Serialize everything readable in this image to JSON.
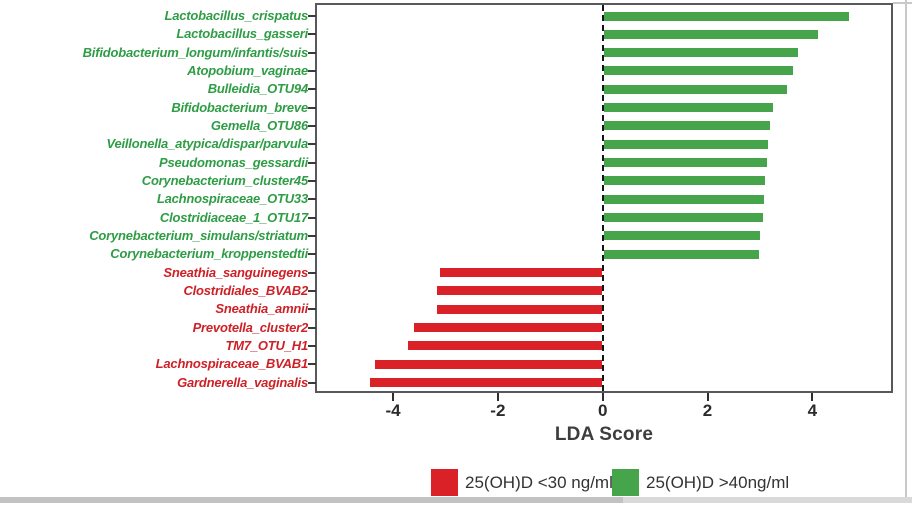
{
  "chart_data": {
    "type": "bar",
    "orientation": "horizontal",
    "xlabel": "LDA Score",
    "xlim": [
      -5.45,
      5.5
    ],
    "xticks": [
      -4,
      -2,
      0,
      2,
      4
    ],
    "grid": false,
    "zero_line_style": "dashed",
    "groups": {
      "high": {
        "name": "25(OH)D >40ng/ml",
        "bar_color": "#46a44a",
        "text_color": "#2e9d45"
      },
      "low": {
        "name": "25(OH)D <30 ng/ml",
        "bar_color": "#db2128",
        "text_color": "#ce2127"
      }
    },
    "series": [
      {
        "taxon": "Lactobacillus_crispatus",
        "value": 4.7,
        "group": "high"
      },
      {
        "taxon": "Lactobacillus_gasseri",
        "value": 4.1,
        "group": "high"
      },
      {
        "taxon": "Bifidobacterium_longum/infantis/suis",
        "value": 3.72,
        "group": "high"
      },
      {
        "taxon": "Atopobium_vaginae",
        "value": 3.63,
        "group": "high"
      },
      {
        "taxon": "Bulleidia_OTU94",
        "value": 3.52,
        "group": "high"
      },
      {
        "taxon": "Bifidobacterium_breve",
        "value": 3.25,
        "group": "high"
      },
      {
        "taxon": "Gemella_OTU86",
        "value": 3.2,
        "group": "high"
      },
      {
        "taxon": "Veillonella_atypica/dispar/parvula",
        "value": 3.16,
        "group": "high"
      },
      {
        "taxon": "Pseudomonas_gessardii",
        "value": 3.13,
        "group": "high"
      },
      {
        "taxon": "Corynebacterium_cluster45",
        "value": 3.1,
        "group": "high"
      },
      {
        "taxon": "Lachnospiraceae_OTU33",
        "value": 3.07,
        "group": "high"
      },
      {
        "taxon": "Clostridiaceae_1_OTU17",
        "value": 3.05,
        "group": "high"
      },
      {
        "taxon": "Corynebacterium_simulans/striatum",
        "value": 3.01,
        "group": "high"
      },
      {
        "taxon": "Corynebacterium_kroppenstedtii",
        "value": 2.99,
        "group": "high"
      },
      {
        "taxon": "Sneathia_sanguinegens",
        "value": -3.1,
        "group": "low"
      },
      {
        "taxon": "Clostridiales_BVAB2",
        "value": -3.16,
        "group": "low"
      },
      {
        "taxon": "Sneathia_amnii",
        "value": -3.16,
        "group": "low"
      },
      {
        "taxon": "Prevotella_cluster2",
        "value": -3.6,
        "group": "low"
      },
      {
        "taxon": "TM7_OTU_H1",
        "value": -3.72,
        "group": "low"
      },
      {
        "taxon": "Lachnospiraceae_BVAB1",
        "value": -4.35,
        "group": "low"
      },
      {
        "taxon": "Gardnerella_vaginalis",
        "value": -4.43,
        "group": "low"
      }
    ],
    "legend": [
      {
        "label": "25(OH)D <30 ng/ml",
        "color": "#db2128"
      },
      {
        "label": "25(OH)D >40ng/ml",
        "color": "#46a44a"
      }
    ],
    "legend_position": "bottom-right",
    "colors": {
      "panel_border": "#59595b",
      "axis_text": "#2b2b2b",
      "zero_line": "#141414"
    }
  }
}
